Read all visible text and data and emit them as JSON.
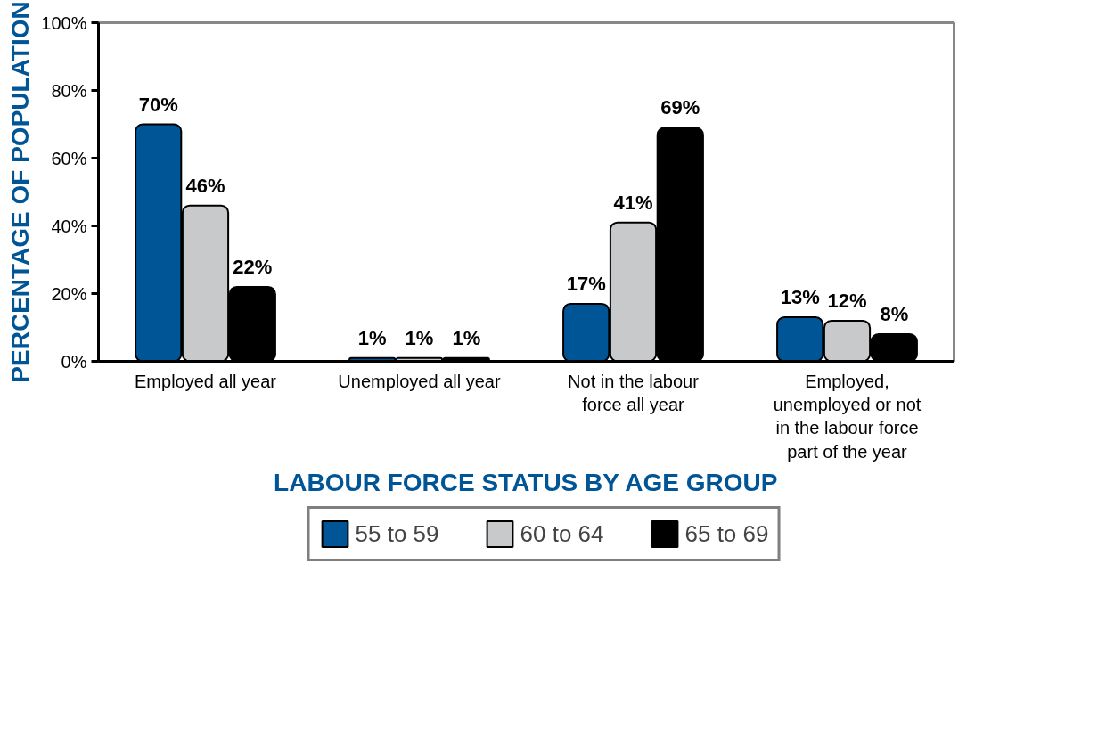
{
  "chart_data": {
    "type": "bar",
    "xlabel": "LABOUR FORCE STATUS BY AGE GROUP",
    "ylabel": "PERCENTAGE OF POPULATION",
    "categories": [
      "Employed all year",
      "Unemployed all year",
      "Not in the labour force all year",
      "Employed, unemployed or not in the labour force part of the year"
    ],
    "series": [
      {
        "name": "55 to 59",
        "color": "#005596",
        "values": [
          70,
          1,
          17,
          13
        ],
        "value_labels": [
          "70%",
          "1%",
          "17%",
          "13%"
        ]
      },
      {
        "name": "60 to 64",
        "color": "#c8c9cb",
        "values": [
          46,
          1,
          41,
          12
        ],
        "value_labels": [
          "46%",
          "1%",
          "41%",
          "12%"
        ]
      },
      {
        "name": "65 to 69",
        "color": "#000000",
        "values": [
          22,
          1,
          69,
          8
        ],
        "value_labels": [
          "22%",
          "1%",
          "69%",
          "8%"
        ]
      }
    ],
    "ylim": [
      0,
      100
    ],
    "yticks": [
      {
        "value": 0,
        "label": "0%"
      },
      {
        "value": 20,
        "label": "20%"
      },
      {
        "value": 40,
        "label": "40%"
      },
      {
        "value": 60,
        "label": "60%"
      },
      {
        "value": 80,
        "label": "80%"
      },
      {
        "value": 100,
        "label": "100%"
      }
    ],
    "grid": false,
    "legend": "bottom"
  }
}
